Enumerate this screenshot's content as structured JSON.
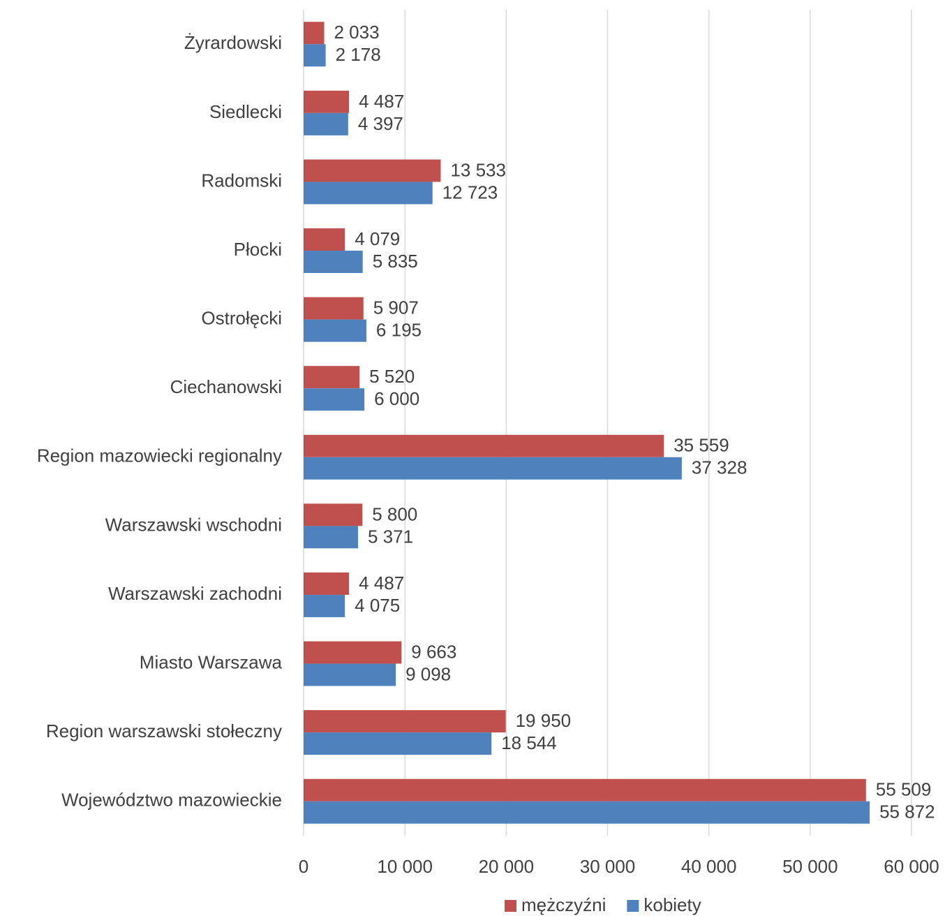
{
  "chart_data": {
    "type": "barh",
    "categories": [
      "Żyrardowski",
      "Siedlecki",
      "Radomski",
      "Płocki",
      "Ostrołęcki",
      "Ciechanowski",
      "Region mazowiecki regionalny",
      "Warszawski wschodni",
      "Warszawski zachodni",
      "Miasto Warszawa",
      "Region warszawski stołeczny",
      "Województwo mazowieckie"
    ],
    "series": [
      {
        "name": "mężczyźni",
        "color": "#c0504d",
        "values": [
          2033,
          4487,
          13533,
          4079,
          5907,
          5520,
          35559,
          5800,
          4487,
          9663,
          19950,
          55509
        ],
        "value_labels": [
          "2 033",
          "4 487",
          "13 533",
          "4 079",
          "5 907",
          "5 520",
          "35 559",
          "5 800",
          "4 487",
          "9 663",
          "19 950",
          "55 509"
        ]
      },
      {
        "name": "kobiety",
        "color": "#4f81bd",
        "values": [
          2178,
          4397,
          12723,
          5835,
          6195,
          6000,
          37328,
          5371,
          4075,
          9098,
          18544,
          55872
        ],
        "value_labels": [
          "2 178",
          "4 397",
          "12 723",
          "5 835",
          "6 195",
          "6 000",
          "37 328",
          "5 371",
          "4 075",
          "9 098",
          "18 544",
          "55 872"
        ]
      }
    ],
    "xlim": [
      0,
      60000
    ],
    "xticks": [
      0,
      {
        "value": 10000,
        "label": "10 000"
      },
      {
        "value": 20000,
        "label": "20 000"
      },
      {
        "value": 30000,
        "label": "30 000"
      },
      {
        "value": 40000,
        "label": "40 000"
      },
      {
        "value": 50000,
        "label": "50 000"
      },
      {
        "value": 60000,
        "label": "60 000"
      }
    ],
    "grid": true,
    "legend": "bottom"
  }
}
